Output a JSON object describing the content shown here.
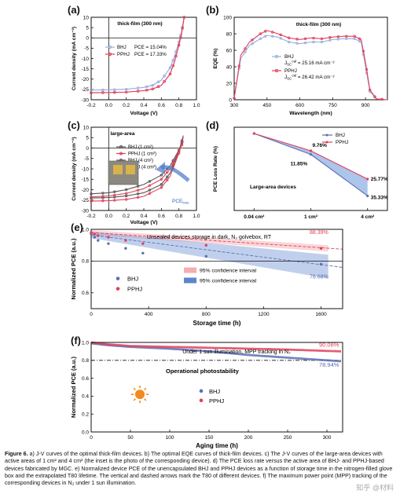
{
  "panels": {
    "a": {
      "label": "(a)",
      "title": "thick-film (300 nm)",
      "xlabel": "Voltage (V)",
      "ylabel": "Current density (mA cm⁻²)",
      "legend": [
        {
          "name": "BHJ",
          "pce": "PCE = 15.04%"
        },
        {
          "name": "PPHJ",
          "pce": "PCE = 17.33%"
        }
      ]
    },
    "b": {
      "label": "(b)",
      "title": "thick-film (300 nm)",
      "xlabel": "Wavelength (nm)",
      "ylabel": "EQE (%)",
      "legend": [
        {
          "name": "BHJ",
          "jsc": "J",
          "sub": "SC",
          "sup": "cal",
          "val": " = 25.16 mA cm⁻²"
        },
        {
          "name": "PPHJ",
          "jsc": "J",
          "sub": "SC",
          "sup": "cal",
          "val": " = 26.42 mA cm⁻²"
        }
      ]
    },
    "c": {
      "label": "(c)",
      "title": "large-area",
      "xlabel": "Voltage (V)",
      "ylabel": "Current density (mA cm⁻²)",
      "legend": [
        "BHJ (1 cm²)",
        "PPHJ (1 cm²)",
        "BHJ (4 cm²)",
        "PPHJ (4 cm²)"
      ],
      "pce_loss": "PCE",
      "pce_loss_sub": "loss"
    },
    "d": {
      "label": "(d)",
      "ylabel": "PCE Loss Rate (%)",
      "note": "Large-area devices",
      "legend": [
        "BHJ",
        "PPHJ"
      ],
      "annotations": [
        "9.76%",
        "11.85%",
        "25.77%",
        "35.33%"
      ]
    },
    "e": {
      "label": "(e)",
      "title": "Unsealed devices storage in dark, N₂ golvebox, RT",
      "xlabel": "Storage time (h)",
      "ylabel": "Normalized PCE (a.u.)",
      "end_labels": [
        "88.39%",
        "78.68%"
      ],
      "legend": [
        "BHJ",
        "PPHJ"
      ],
      "ci_legend": [
        "95% confidence interval",
        "95% confidence interval"
      ]
    },
    "f": {
      "label": "(f)",
      "title": "Under 1 sun illumination, MPP tracking in N₂",
      "xlabel": "Aging time (h)",
      "ylabel": "Normalized PCE (a.u.)",
      "end_labels": [
        "90.06%",
        "78.94%"
      ],
      "note": "Operational  photostability",
      "legend": [
        "BHJ",
        "PPHJ"
      ]
    }
  },
  "colors": {
    "bhj": "#5a6fb5",
    "pphj": "#e0405a",
    "bhj_light": "#9aaee0",
    "pphj_light": "#f3a6b0",
    "blue_ci": "#4a78c8",
    "red_ci": "#f08a90",
    "gray": "#555555",
    "sun": "#f28a1e"
  },
  "chart_data": [
    {
      "type": "line",
      "panel": "a",
      "title": "thick-film (300 nm)",
      "xlabel": "Voltage (V)",
      "ylabel": "Current density (mA cm⁻²)",
      "xlim": [
        -0.2,
        1.0
      ],
      "ylim": [
        -30,
        10
      ],
      "xticks": [
        -0.2,
        0.0,
        0.2,
        0.4,
        0.6,
        0.8,
        1.0
      ],
      "yticks": [
        -30,
        -25,
        -20,
        -15,
        -10,
        -5,
        0,
        5,
        10
      ],
      "series": [
        {
          "name": "BHJ",
          "x": [
            -0.2,
            0,
            0.2,
            0.4,
            0.5,
            0.6,
            0.7,
            0.75,
            0.8,
            0.83,
            0.86
          ],
          "y": [
            -25.3,
            -25.2,
            -24.9,
            -24.0,
            -23.0,
            -20.5,
            -14.5,
            -9.0,
            -2.0,
            3.0,
            10.0
          ]
        },
        {
          "name": "PPHJ",
          "x": [
            -0.2,
            0,
            0.2,
            0.4,
            0.5,
            0.6,
            0.7,
            0.75,
            0.8,
            0.83,
            0.86
          ],
          "y": [
            -26.6,
            -26.5,
            -26.3,
            -25.6,
            -24.8,
            -23.0,
            -17.5,
            -11.5,
            -3.5,
            2.0,
            10.0
          ]
        }
      ]
    },
    {
      "type": "line",
      "panel": "b",
      "title": "thick-film (300 nm)",
      "xlabel": "Wavelength (nm)",
      "ylabel": "EQE (%)",
      "xlim": [
        300,
        1000
      ],
      "ylim": [
        0,
        100
      ],
      "xticks": [
        300,
        450,
        600,
        750,
        900
      ],
      "yticks": [
        0,
        20,
        40,
        60,
        80,
        100
      ],
      "series": [
        {
          "name": "BHJ",
          "x": [
            300,
            330,
            370,
            420,
            450,
            500,
            550,
            600,
            650,
            700,
            750,
            800,
            850,
            880,
            900,
            920,
            950,
            1000
          ],
          "y": [
            2,
            50,
            66,
            74,
            78,
            76,
            70,
            68,
            70,
            70,
            73,
            74,
            74,
            70,
            40,
            10,
            1,
            0
          ]
        },
        {
          "name": "PPHJ",
          "x": [
            300,
            330,
            370,
            420,
            450,
            500,
            550,
            600,
            650,
            700,
            750,
            800,
            850,
            880,
            900,
            920,
            950,
            1000
          ],
          "y": [
            2,
            54,
            70,
            80,
            84,
            80,
            75,
            73,
            75,
            74,
            76,
            77,
            77,
            73,
            45,
            12,
            1,
            0
          ]
        }
      ]
    },
    {
      "type": "line",
      "panel": "c",
      "title": "large-area",
      "xlabel": "Voltage (V)",
      "ylabel": "Current density (mA cm⁻²)",
      "xlim": [
        -0.2,
        1.0
      ],
      "ylim": [
        -30,
        10
      ],
      "xticks": [
        -0.2,
        0.0,
        0.2,
        0.4,
        0.6,
        0.8,
        1.0
      ],
      "yticks": [
        -30,
        -25,
        -20,
        -15,
        -10,
        -5,
        0,
        5,
        10
      ],
      "series": [
        {
          "name": "BHJ (1 cm²)",
          "x": [
            -0.2,
            0,
            0.2,
            0.4,
            0.6,
            0.7,
            0.8,
            0.85
          ],
          "y": [
            -24.0,
            -23.8,
            -23.0,
            -21.5,
            -17.5,
            -12.0,
            -1.5,
            6.0
          ]
        },
        {
          "name": "PPHJ (1 cm²)",
          "x": [
            -0.2,
            0,
            0.2,
            0.4,
            0.6,
            0.7,
            0.8,
            0.85
          ],
          "y": [
            -25.5,
            -25.3,
            -24.7,
            -23.2,
            -19.0,
            -13.5,
            -2.5,
            5.0
          ]
        },
        {
          "name": "BHJ (4 cm²)",
          "x": [
            -0.2,
            0,
            0.2,
            0.4,
            0.6,
            0.7,
            0.8,
            0.85
          ],
          "y": [
            -22.0,
            -21.5,
            -20.0,
            -17.5,
            -13.0,
            -8.5,
            -1.0,
            3.5
          ]
        },
        {
          "name": "PPHJ (4 cm²)",
          "x": [
            -0.2,
            0,
            0.2,
            0.4,
            0.6,
            0.7,
            0.8,
            0.85
          ],
          "y": [
            -23.5,
            -23.0,
            -21.8,
            -19.5,
            -15.0,
            -10.0,
            -1.5,
            3.0
          ]
        }
      ]
    },
    {
      "type": "line",
      "panel": "d",
      "ylabel": "PCE Loss Rate (%)",
      "categories": [
        "0.04 cm²",
        "1 cm²",
        "4 cm²"
      ],
      "ylim": [
        0,
        40
      ],
      "yticks": [
        0,
        10,
        20,
        30,
        40
      ],
      "series": [
        {
          "name": "BHJ",
          "values": [
            0,
            11.85,
            35.33
          ]
        },
        {
          "name": "PPHJ",
          "values": [
            0,
            9.76,
            25.77
          ]
        }
      ]
    },
    {
      "type": "scatter",
      "panel": "e",
      "title": "Unsealed devices storage in dark, N₂ golvebox, RT",
      "xlabel": "Storage time (h)",
      "ylabel": "Normalized PCE (a.u.)",
      "xlim": [
        0,
        1750
      ],
      "ylim": [
        0.6,
        1.0
      ],
      "xticks": [
        0,
        400,
        800,
        1200,
        1600
      ],
      "yticks": [
        0.6,
        0.8,
        1.0
      ],
      "series": [
        {
          "name": "BHJ",
          "x": [
            0,
            24,
            48,
            120,
            240,
            360,
            800,
            1600
          ],
          "y": [
            0.97,
            0.95,
            0.93,
            0.91,
            0.88,
            0.85,
            0.83,
            0.78
          ]
        },
        {
          "name": "PPHJ",
          "x": [
            0,
            24,
            48,
            120,
            240,
            360,
            800,
            1600
          ],
          "y": [
            0.98,
            0.97,
            0.96,
            0.95,
            0.93,
            0.91,
            0.9,
            0.88
          ]
        }
      ]
    },
    {
      "type": "line",
      "panel": "f",
      "title": "Under 1 sun illumination, MPP tracking in N₂",
      "xlabel": "Aging time (h)",
      "ylabel": "Normalized PCE (a.u.)",
      "xlim": [
        0,
        320
      ],
      "ylim": [
        0.0,
        1.0
      ],
      "xticks": [
        0,
        50,
        100,
        150,
        200,
        250,
        300
      ],
      "yticks": [
        0.0,
        0.2,
        0.4,
        0.6,
        0.8,
        1.0
      ],
      "series": [
        {
          "name": "BHJ",
          "x": [
            0,
            20,
            50,
            100,
            150,
            200,
            250,
            300,
            318
          ],
          "y": [
            0.99,
            0.97,
            0.95,
            0.93,
            0.9,
            0.86,
            0.83,
            0.8,
            0.79
          ]
        },
        {
          "name": "PPHJ",
          "x": [
            0,
            20,
            50,
            100,
            150,
            200,
            250,
            300,
            318
          ],
          "y": [
            1.0,
            0.98,
            0.96,
            0.95,
            0.94,
            0.93,
            0.92,
            0.905,
            0.9
          ]
        }
      ]
    }
  ],
  "caption": {
    "lead": "Figure 6.",
    "text": " a) J-V curves of the optimal thick-film devices. b) The optimal EQE curves of thick-film devices. c) The J-V curves of the large-area devices with active areas of 1 cm² and 4 cm² (the inset is the photo of the corresponding device). d) The PCE loss rate versus the active area of BHJ- and PPHJ-based devices fabricated by MGC. e) Normalized device PCE of the unencapsulated BHJ and PPHJ devices as a function of storage time in the nitrogen-filled glove box and the extrapolated T80 lifetime. The vertical and dashed arrows mark the T80 of different devices. f) The maximum power point (MPP) tracking of the corresponding devices in N₂ under 1 sun illumination."
  },
  "watermark": "知乎 @材料"
}
